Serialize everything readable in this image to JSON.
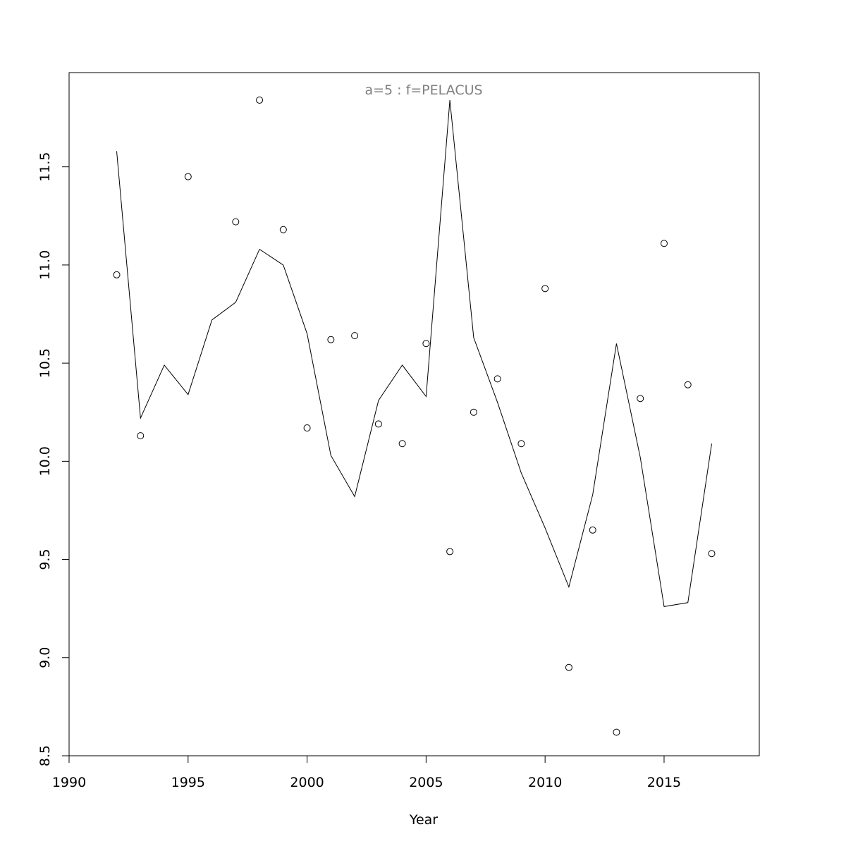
{
  "chart_data": {
    "type": "scatter",
    "title": "a=5  :  f=PELACUS",
    "xlabel": "Year",
    "ylabel": "",
    "xlim": [
      1990,
      2019
    ],
    "ylim": [
      8.5,
      11.98
    ],
    "xticks": [
      1990,
      1995,
      2000,
      2005,
      2010,
      2015
    ],
    "yticks": [
      "8.5",
      "9.0",
      "9.5",
      "10.0",
      "10.5",
      "11.0",
      "11.5"
    ],
    "grid": false,
    "series": [
      {
        "kind": "points",
        "x": [
          1992,
          1993,
          1995,
          1997,
          1998,
          1999,
          2000,
          2001,
          2002,
          2003,
          2004,
          2005,
          2006,
          2007,
          2008,
          2009,
          2010,
          2011,
          2012,
          2013,
          2014,
          2015,
          2016,
          2017
        ],
        "y": [
          10.95,
          10.13,
          11.45,
          11.22,
          11.84,
          11.18,
          10.17,
          10.62,
          10.64,
          10.19,
          10.09,
          10.6,
          9.54,
          10.25,
          10.42,
          10.09,
          10.88,
          8.95,
          9.65,
          8.62,
          10.32,
          11.11,
          10.39,
          9.53
        ]
      },
      {
        "kind": "line",
        "x": [
          1992,
          1993,
          1994,
          1995,
          1996,
          1997,
          1998,
          1999,
          2000,
          2001,
          2002,
          2003,
          2004,
          2005,
          2006,
          2007,
          2008,
          2009,
          2010,
          2011,
          2012,
          2013,
          2014,
          2015,
          2016,
          2017
        ],
        "y": [
          11.58,
          10.22,
          10.49,
          10.34,
          10.72,
          10.81,
          11.08,
          11.0,
          10.65,
          10.03,
          9.82,
          10.31,
          10.49,
          10.33,
          11.84,
          10.63,
          10.3,
          9.94,
          9.66,
          9.36,
          9.83,
          10.6,
          10.02,
          9.26,
          9.28,
          10.09
        ]
      }
    ]
  }
}
